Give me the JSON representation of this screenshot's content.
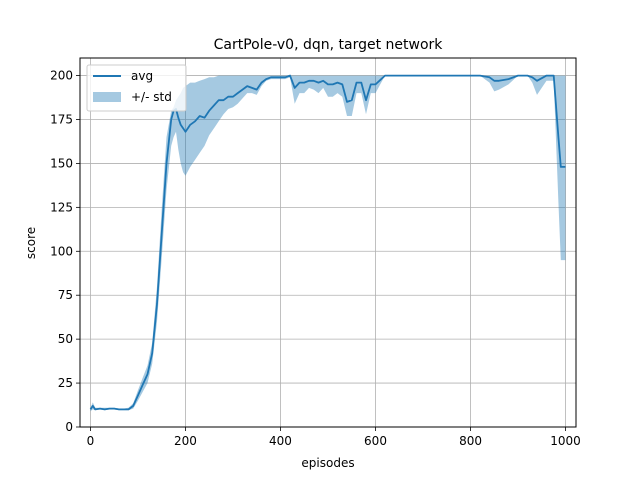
{
  "chart_data": {
    "type": "line",
    "title": "CartPole-v0, dqn, target network",
    "xlabel": "episodes",
    "ylabel": "score",
    "xlim": [
      -22,
      1022
    ],
    "ylim": [
      0,
      210
    ],
    "xticks": [
      0,
      200,
      400,
      600,
      800,
      1000
    ],
    "yticks": [
      0,
      25,
      50,
      75,
      100,
      125,
      150,
      175,
      200
    ],
    "grid": true,
    "legend": {
      "position": "top-left",
      "entries": [
        "avg",
        "+/- std"
      ]
    },
    "colors": {
      "line": "#1f77b4",
      "band": "#1f77b4",
      "grid": "#b0b0b0"
    },
    "series": [
      {
        "name": "avg",
        "x": [
          0,
          5,
          10,
          20,
          30,
          40,
          50,
          60,
          70,
          80,
          90,
          100,
          110,
          120,
          130,
          140,
          150,
          160,
          170,
          175,
          180,
          185,
          190,
          195,
          200,
          210,
          220,
          230,
          240,
          250,
          260,
          270,
          280,
          290,
          300,
          310,
          320,
          330,
          340,
          350,
          360,
          370,
          380,
          390,
          400,
          410,
          420,
          430,
          440,
          450,
          460,
          470,
          480,
          490,
          500,
          510,
          520,
          530,
          540,
          550,
          560,
          570,
          580,
          590,
          600,
          620,
          650,
          700,
          750,
          800,
          820,
          840,
          850,
          860,
          880,
          900,
          920,
          930,
          940,
          960,
          975,
          985,
          990,
          1000
        ],
        "y": [
          10,
          12,
          10,
          10.5,
          10,
          10.5,
          10.5,
          10,
          10,
          10,
          12,
          18,
          24,
          30,
          42,
          70,
          110,
          150,
          175,
          180,
          181,
          176,
          172,
          170,
          168,
          172,
          174,
          177,
          176,
          180,
          183,
          186,
          186,
          188,
          188,
          190,
          192,
          194,
          193,
          192,
          196,
          198,
          199,
          199,
          199,
          199,
          200,
          193,
          196,
          196,
          197,
          197,
          196,
          197,
          195,
          195,
          196,
          195,
          185,
          186,
          196,
          196,
          186,
          195,
          195,
          200,
          200,
          200,
          200,
          200,
          200,
          199,
          197,
          197,
          198,
          200,
          200,
          199,
          197,
          200,
          200,
          165,
          148,
          148
        ]
      },
      {
        "name": "+/- std",
        "x": [
          0,
          5,
          10,
          20,
          30,
          40,
          50,
          60,
          70,
          80,
          90,
          100,
          110,
          120,
          130,
          140,
          150,
          160,
          170,
          175,
          180,
          185,
          190,
          195,
          200,
          210,
          220,
          230,
          240,
          250,
          260,
          270,
          280,
          290,
          300,
          310,
          320,
          330,
          340,
          350,
          360,
          370,
          380,
          390,
          400,
          410,
          420,
          430,
          440,
          450,
          460,
          470,
          480,
          490,
          500,
          510,
          520,
          530,
          540,
          550,
          560,
          570,
          580,
          590,
          600,
          620,
          650,
          700,
          750,
          800,
          820,
          840,
          850,
          860,
          880,
          900,
          920,
          930,
          940,
          960,
          975,
          985,
          990,
          1000
        ],
        "lower": [
          9,
          10,
          9.5,
          10,
          9.5,
          10,
          10,
          9.5,
          9.5,
          9.5,
          10.5,
          15,
          20,
          25,
          36,
          60,
          96,
          135,
          160,
          165,
          168,
          158,
          150,
          145,
          143,
          148,
          152,
          156,
          160,
          166,
          170,
          174,
          178,
          181,
          182,
          184,
          187,
          190,
          190,
          189,
          194,
          197,
          198,
          198,
          198,
          198,
          199,
          184,
          190,
          190,
          193,
          192,
          190,
          193,
          188,
          188,
          190,
          188,
          177,
          177,
          190,
          190,
          178,
          190,
          190,
          200,
          200,
          200,
          200,
          200,
          200,
          196,
          191,
          192,
          195,
          200,
          200,
          196,
          189,
          197,
          197,
          128,
          95,
          95
        ],
        "upper": [
          11,
          14,
          11,
          11,
          11,
          11,
          11,
          10.5,
          10.5,
          11,
          13.5,
          21,
          28,
          35,
          48,
          80,
          124,
          165,
          180,
          182,
          186,
          188,
          190,
          193,
          194,
          196,
          196,
          197,
          198,
          199,
          199,
          200,
          200,
          200,
          200,
          200,
          200,
          200,
          200,
          200,
          200,
          200,
          200,
          200,
          200,
          200,
          200,
          200,
          200,
          200,
          200,
          200,
          200,
          200,
          200,
          200,
          200,
          200,
          200,
          200,
          200,
          200,
          200,
          200,
          200,
          200,
          200,
          200,
          200,
          200,
          200,
          200,
          200,
          200,
          200,
          200,
          200,
          200,
          200,
          200,
          200,
          200,
          200,
          200
        ]
      }
    ]
  }
}
